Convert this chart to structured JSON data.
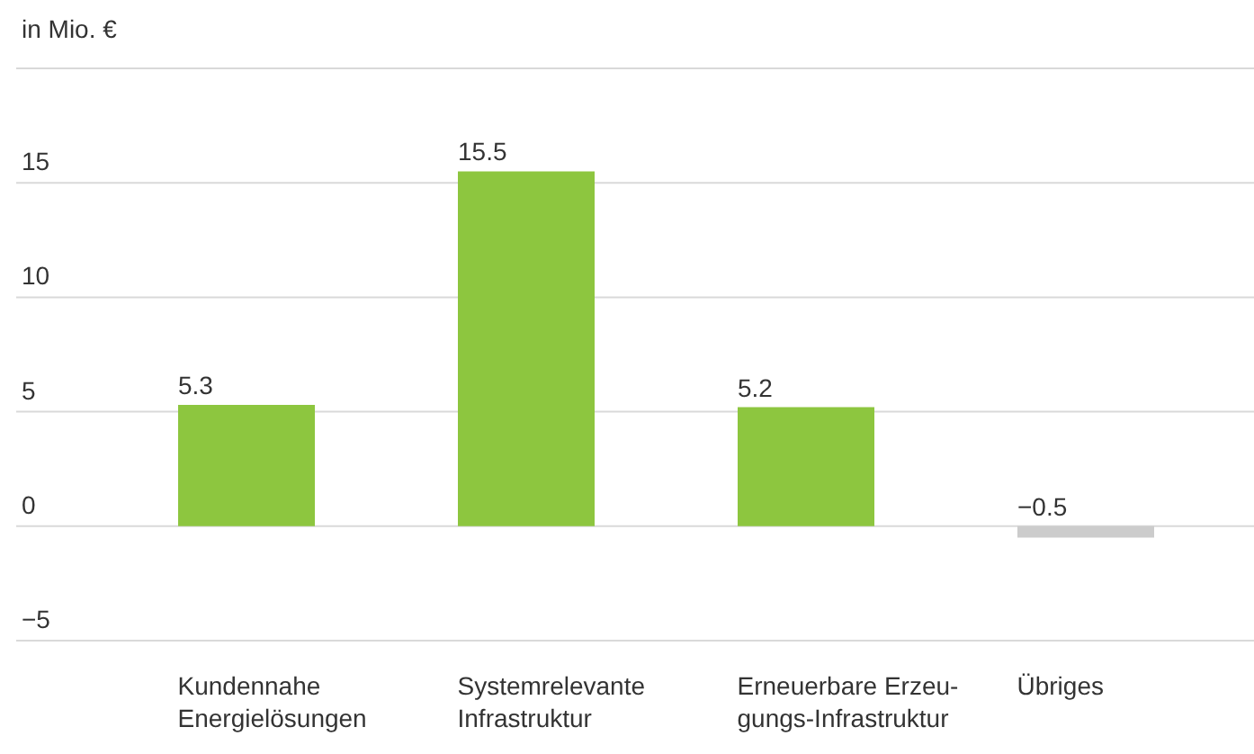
{
  "chart_data": {
    "type": "bar",
    "ylabel": "in Mio. €",
    "categories": [
      "Kundennahe\nEnergielösungen",
      "Systemrelevante\nInfrastruktur",
      "Erneuerbare Erzeu-\ngungs-Infrastruktur",
      "Übriges"
    ],
    "values": [
      5.3,
      15.5,
      5.2,
      -0.5
    ],
    "colors": [
      "#8dc63f",
      "#8dc63f",
      "#8dc63f",
      "#cccccc"
    ],
    "ylim": [
      -5,
      20
    ],
    "yticks": [
      -5,
      0,
      5,
      10,
      15,
      {
        "value": 20,
        "label": null
      }
    ],
    "grid": "y",
    "data_labels": true,
    "legend": false
  }
}
